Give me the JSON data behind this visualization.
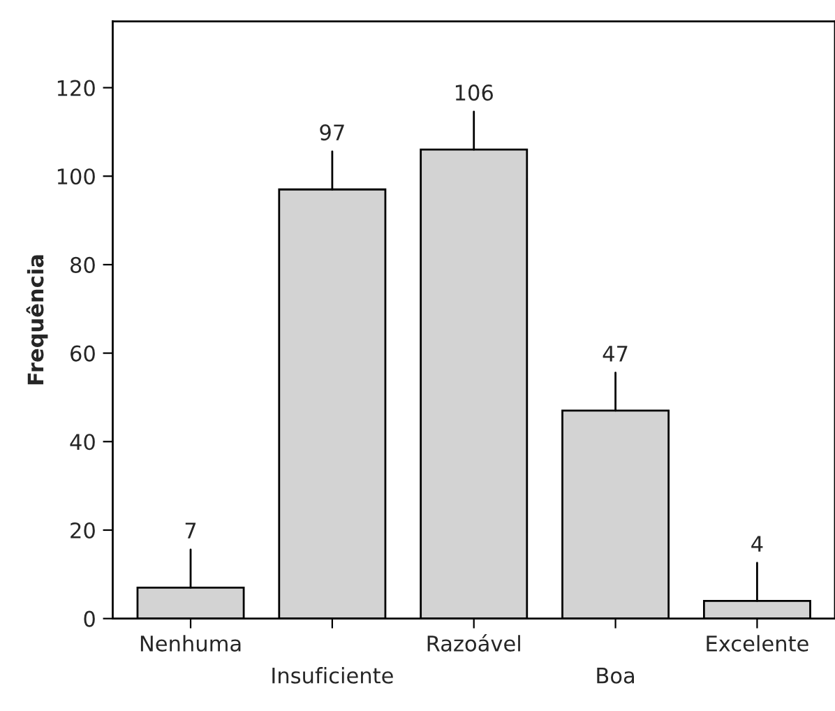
{
  "chart_data": {
    "type": "bar",
    "ylabel": "Frequência",
    "categories": [
      "Nenhuma",
      "Insuficiente",
      "Razoável",
      "Boa",
      "Excelente"
    ],
    "values": [
      7,
      97,
      106,
      47,
      4
    ],
    "color": "#d3d3d3",
    "ylim": [
      0,
      135
    ],
    "yticks": [
      0,
      20,
      40,
      60,
      80,
      100,
      120
    ],
    "data_labels": true,
    "grid": false
  }
}
